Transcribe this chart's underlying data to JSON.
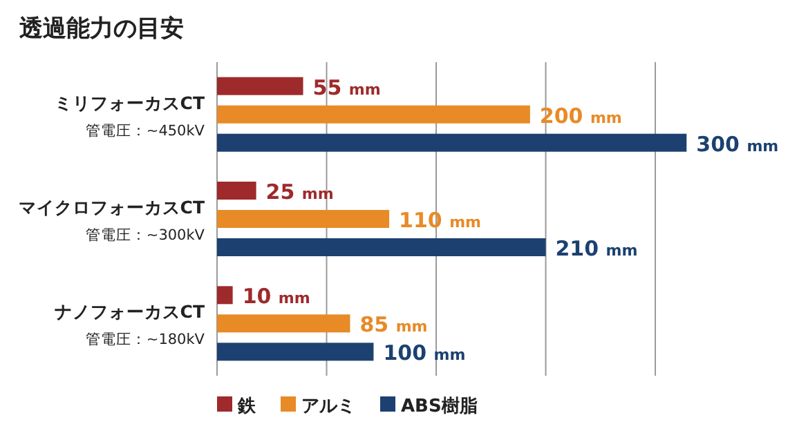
{
  "chart_data": {
    "type": "bar",
    "orientation": "horizontal",
    "title": "透過能力の目安",
    "categories": [
      "ミリフォーカスCT\n管電圧：~450kV",
      "マイクロフォーカスCT\n管電圧：~300kV",
      "ナノフォーカスCT\n管電圧：~180kV"
    ],
    "series": [
      {
        "name": "鉄",
        "color": "#9e2a2b",
        "values": [
          55,
          25,
          10
        ],
        "value_labels": [
          "55 mm",
          "25 mm",
          "10 mm"
        ]
      },
      {
        "name": "アルミ",
        "color": "#e88a26",
        "values": [
          200,
          110,
          85
        ],
        "value_labels": [
          "200 mm",
          "110 mm",
          "85 mm"
        ]
      },
      {
        "name": "ABS樹脂",
        "color": "#1c4170",
        "values": [
          300,
          210,
          100
        ],
        "value_labels": [
          "300 mm",
          "210 mm",
          "100 mm"
        ]
      }
    ],
    "xticks": [
      {
        "value": 0,
        "label": null
      },
      {
        "value": 70,
        "label": null
      },
      {
        "value": 140,
        "label": null
      },
      {
        "value": 210,
        "label": null
      },
      {
        "value": 280,
        "label": null
      }
    ],
    "grid": "x",
    "legend": "bottom"
  }
}
